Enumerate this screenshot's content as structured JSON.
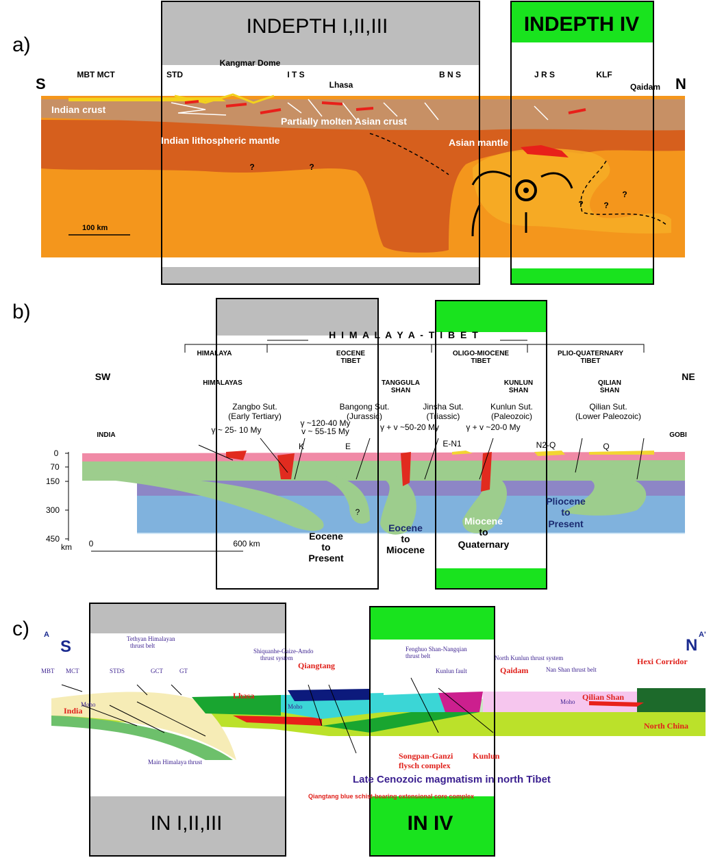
{
  "a": {
    "label": "a)",
    "box_1": "INDEPTH I,II,III",
    "box_2": "INDEPTH IV",
    "ends": [
      "S",
      "N"
    ],
    "sutures": [
      "MBT MCT",
      "STD",
      "Kangmar Dome",
      "I T S",
      "Lhasa",
      "B N S",
      "J R S",
      "KLF",
      "Qaidam"
    ],
    "units": [
      "Indian crust",
      "Partially molten Asian crust",
      "Indian lithospheric mantle",
      "Asian mantle"
    ],
    "unknowns": [
      "?",
      "?",
      "?",
      "?",
      "?"
    ],
    "scale": "100 km"
  },
  "b": {
    "label": "b)",
    "title": "H I M A L A Y A  -  T I B E T",
    "regions": [
      [
        "HIMALAYA"
      ],
      [
        "EOCENE",
        "TIBET"
      ],
      [
        "OLIGO-MIOCENE",
        "TIBET"
      ],
      [
        "PLIO-QUATERNARY",
        "TIBET"
      ]
    ],
    "ends": [
      "SW",
      "NE"
    ],
    "ranges": [
      [
        "HIMALAYAS"
      ],
      [
        "TANGGULA",
        "SHAN"
      ],
      [
        "KUNLUN",
        "SHAN"
      ],
      [
        "QILIAN",
        "SHAN"
      ]
    ],
    "sutures": [
      [
        "Zangbo Sut.",
        "(Early Tertiary)"
      ],
      [
        "Bangong Sut.",
        "(Jurassic)"
      ],
      [
        "Jinsha Sut.",
        "(Triassic)"
      ],
      [
        "Kunlun Sut.",
        "(Paleozoic)"
      ],
      [
        "Qilian Sut.",
        "(Lower Paleozoic)"
      ]
    ],
    "ages": [
      "γ ~ 25- 10 My",
      "γ ~120-40 My",
      "v ~ 55-15 My",
      "γ + v ~50-20 My",
      "γ + v ~20-0 My"
    ],
    "ends_lower": [
      "INDIA",
      "GOBI"
    ],
    "symbols": [
      "K",
      "E",
      "E-N1",
      "N2-Q",
      "Q",
      "?"
    ],
    "depths": [
      "0",
      "70",
      "150",
      "300",
      "450"
    ],
    "depth_unit": "km",
    "scale": [
      "0",
      "600 km"
    ],
    "periods": [
      [
        "Eocene",
        "to",
        "Present"
      ],
      [
        "Eocene",
        "to",
        "Miocene"
      ],
      [
        "Miocene",
        "to",
        "Quaternary"
      ],
      [
        "Pliocene",
        "to",
        "Present"
      ]
    ]
  },
  "c": {
    "label": "c)",
    "box_1": "IN I,II,III",
    "box_2": "IN IV",
    "ends": [
      "A",
      "S",
      "N",
      "A'"
    ],
    "thrusts": [
      [
        "Tethyan Himalayan",
        "thrust belt"
      ],
      [
        "Shiquanhe-Gaize-Amdo",
        "thrust system"
      ],
      [
        "Fenghuo Shan-Nangqian",
        "thrust belt"
      ],
      "North Kunlun thrust system",
      "Nan Shan thrust belt",
      "Kunlun fault",
      "Main Himalaya thrust"
    ],
    "faults": [
      "MBT",
      "MCT",
      "STDS",
      "GCT",
      "GT"
    ],
    "units": [
      "Qiangtang",
      "Qaidam",
      "Hexi Corridor",
      "Lhasa",
      "India",
      "Qilian Shan",
      "North China",
      [
        "Songpan-Ganzi",
        "flysch complex"
      ],
      "Kunlun"
    ],
    "moho": [
      "Moho",
      "Moho",
      "Moho"
    ],
    "magmatism": "Late Cenozoic magmatism in north Tibet",
    "core_complex": "Qiangtang blue schist-bearing extensional core complex"
  }
}
